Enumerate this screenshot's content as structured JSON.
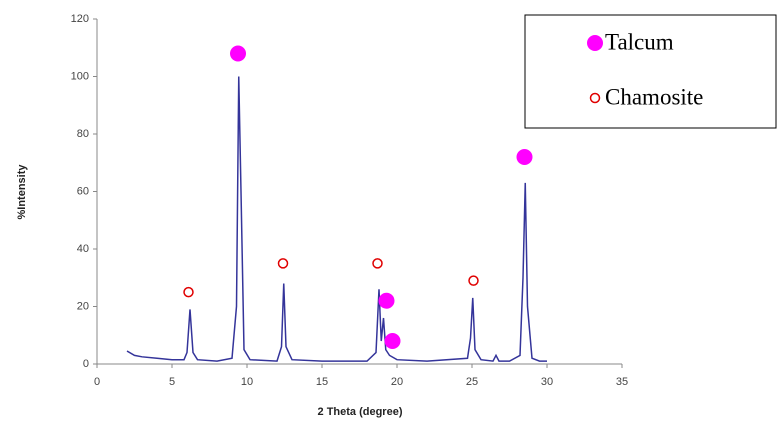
{
  "chart_data": {
    "type": "line",
    "xlabel": "2 Theta (degree)",
    "ylabel": "%Intensity",
    "color": "#34349a",
    "x": [
      2,
      2.5,
      3,
      4,
      5,
      5.8,
      6.0,
      6.2,
      6.4,
      6.7,
      8,
      9.0,
      9.3,
      9.45,
      9.6,
      9.8,
      10.2,
      12,
      12.3,
      12.45,
      12.6,
      13,
      15,
      18,
      18.6,
      18.8,
      18.95,
      19.1,
      19.25,
      19.5,
      20,
      22,
      24.7,
      24.9,
      25.05,
      25.2,
      25.6,
      26.4,
      26.6,
      26.8,
      27.5,
      28.2,
      28.4,
      28.55,
      28.7,
      29,
      29.5,
      30
    ],
    "values": [
      4.5,
      3,
      2.5,
      2,
      1.5,
      1.5,
      4,
      19,
      4,
      1.5,
      1,
      2,
      20,
      100,
      60,
      5,
      1.5,
      1,
      6,
      28,
      6,
      1.5,
      1,
      1,
      4,
      26,
      8,
      16,
      5,
      3,
      1.5,
      1,
      2,
      9,
      23,
      5,
      1.5,
      1,
      3,
      1,
      1,
      3,
      30,
      63,
      20,
      2,
      1,
      1
    ],
    "xlim": [
      0,
      35
    ],
    "xticks": [
      0,
      5,
      10,
      15,
      20,
      25,
      30,
      35
    ],
    "ylim": [
      0,
      120
    ],
    "yticks": [
      0,
      20,
      40,
      60,
      80,
      100,
      120
    ],
    "legend": "upper right",
    "series": [
      {
        "name": "Talcum",
        "color": "#ff00ff",
        "filled": true,
        "x": [
          9.4,
          19.3,
          19.7,
          28.5
        ],
        "values": [
          108,
          22,
          8,
          72
        ]
      },
      {
        "name": "Chamosite",
        "color": "#e00000",
        "filled": false,
        "x": [
          6.1,
          12.4,
          18.7,
          25.1
        ],
        "values": [
          25,
          35,
          35,
          29
        ]
      }
    ]
  }
}
